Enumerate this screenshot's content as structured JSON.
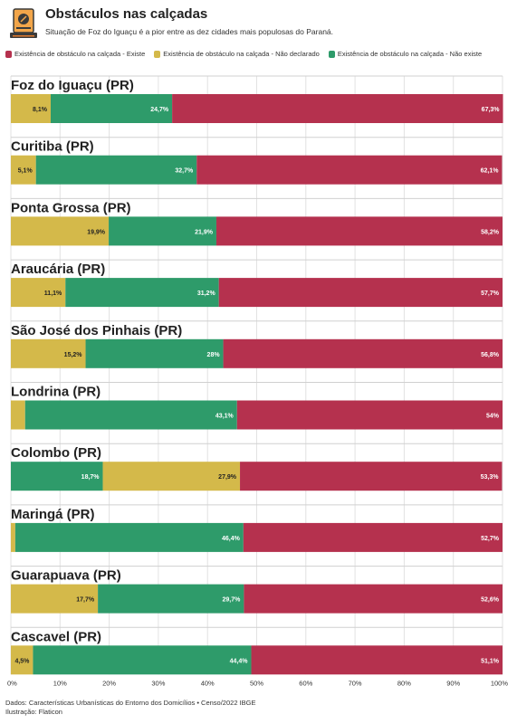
{
  "header": {
    "title": "Obstáculos nas calçadas",
    "subtitle": "Situação de Foz do Iguaçu é a pior entre as dez cidades mais populosas do Paraná."
  },
  "legend": [
    {
      "label": "Existência de obstáculo na calçada - Existe",
      "color": "#b5314e"
    },
    {
      "label": "Existência de obstáculo na calçada - Não declarado",
      "color": "#d4b94a"
    },
    {
      "label": "Existência de obstáculo na calçada - Não existe",
      "color": "#2e9b6a"
    }
  ],
  "footer": {
    "source": "Dados: Características Urbanísticas do Entorno dos Domicílios • Censo/2022 IBGE",
    "illustration": "Ilustração: Flaticon"
  },
  "chart_data": {
    "type": "bar",
    "orientation": "horizontal-stacked-100",
    "xlim": [
      0,
      100
    ],
    "x_ticks": [
      "0%",
      "10%",
      "20%",
      "30%",
      "40%",
      "50%",
      "60%",
      "70%",
      "80%",
      "90%",
      "100%"
    ],
    "colors": {
      "existe": "#b5314e",
      "nao_declarado": "#d4b94a",
      "nao_existe": "#2e9b6a"
    },
    "rows": [
      {
        "city": "Foz do Iguaçu (PR)",
        "segments": [
          {
            "key": "nao_declarado",
            "value": 8.1,
            "label": "8,1%"
          },
          {
            "key": "nao_existe",
            "value": 24.7,
            "label": "24,7%"
          },
          {
            "key": "existe",
            "value": 67.3,
            "label": "67,3%"
          }
        ]
      },
      {
        "city": "Curitiba (PR)",
        "segments": [
          {
            "key": "nao_declarado",
            "value": 5.1,
            "label": "5,1%"
          },
          {
            "key": "nao_existe",
            "value": 32.7,
            "label": "32,7%"
          },
          {
            "key": "existe",
            "value": 62.1,
            "label": "62,1%"
          }
        ]
      },
      {
        "city": "Ponta Grossa (PR)",
        "segments": [
          {
            "key": "nao_declarado",
            "value": 19.9,
            "label": "19,9%"
          },
          {
            "key": "nao_existe",
            "value": 21.9,
            "label": "21,9%"
          },
          {
            "key": "existe",
            "value": 58.2,
            "label": "58,2%"
          }
        ]
      },
      {
        "city": "Araucária (PR)",
        "segments": [
          {
            "key": "nao_declarado",
            "value": 11.1,
            "label": "11,1%"
          },
          {
            "key": "nao_existe",
            "value": 31.2,
            "label": "31,2%"
          },
          {
            "key": "existe",
            "value": 57.7,
            "label": "57,7%"
          }
        ]
      },
      {
        "city": "São José dos Pinhais (PR)",
        "segments": [
          {
            "key": "nao_declarado",
            "value": 15.2,
            "label": "15,2%"
          },
          {
            "key": "nao_existe",
            "value": 28,
            "label": "28%"
          },
          {
            "key": "existe",
            "value": 56.8,
            "label": "56,8%"
          }
        ]
      },
      {
        "city": "Londrina (PR)",
        "segments": [
          {
            "key": "nao_declarado",
            "value": 2.9,
            "label": ""
          },
          {
            "key": "nao_existe",
            "value": 43.1,
            "label": "43,1%"
          },
          {
            "key": "existe",
            "value": 54,
            "label": "54%"
          }
        ]
      },
      {
        "city": "Colombo (PR)",
        "segments": [
          {
            "key": "nao_existe",
            "value": 18.7,
            "label": "18,7%"
          },
          {
            "key": "nao_declarado",
            "value": 27.9,
            "label": "27,9%"
          },
          {
            "key": "existe",
            "value": 53.3,
            "label": "53,3%"
          }
        ]
      },
      {
        "city": "Maringá (PR)",
        "segments": [
          {
            "key": "nao_declarado",
            "value": 0.9,
            "label": ""
          },
          {
            "key": "nao_existe",
            "value": 46.4,
            "label": "46,4%"
          },
          {
            "key": "existe",
            "value": 52.7,
            "label": "52,7%"
          }
        ]
      },
      {
        "city": "Guarapuava (PR)",
        "segments": [
          {
            "key": "nao_declarado",
            "value": 17.7,
            "label": "17,7%"
          },
          {
            "key": "nao_existe",
            "value": 29.7,
            "label": "29,7%"
          },
          {
            "key": "existe",
            "value": 52.6,
            "label": "52,6%"
          }
        ]
      },
      {
        "city": "Cascavel (PR)",
        "segments": [
          {
            "key": "nao_declarado",
            "value": 4.5,
            "label": "4,5%"
          },
          {
            "key": "nao_existe",
            "value": 44.4,
            "label": "44,4%"
          },
          {
            "key": "existe",
            "value": 51.1,
            "label": "51,1%"
          }
        ]
      }
    ]
  }
}
